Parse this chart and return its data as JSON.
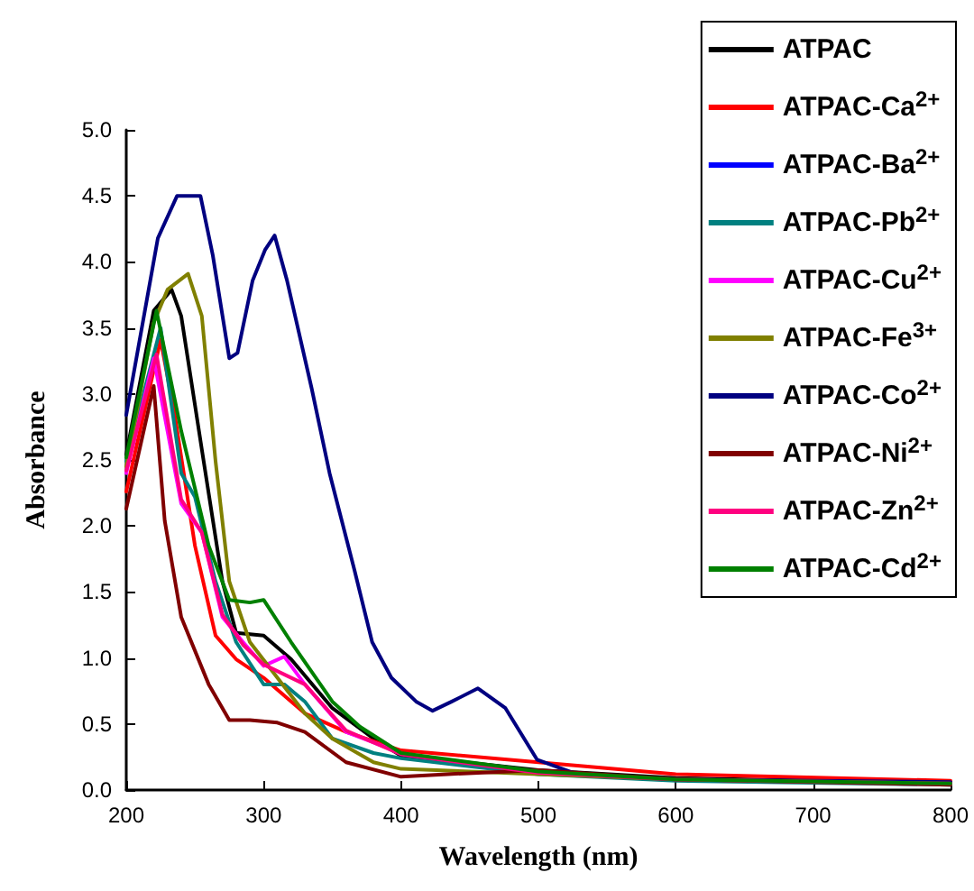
{
  "chart_data": {
    "type": "line",
    "xlabel": "Wavelength (nm)",
    "ylabel": "Absorbance",
    "xlim": [
      200,
      800
    ],
    "xticks": [
      200,
      300,
      400,
      500,
      600,
      700,
      800
    ],
    "ylim": [
      0,
      5
    ],
    "yticks": [
      {
        "value": 0,
        "label": "0.0"
      },
      {
        "value": 0.5,
        "label": "0.5"
      },
      {
        "value": 1,
        "label": "1.0"
      },
      {
        "value": 1.5,
        "label": "1.5"
      },
      {
        "value": 2,
        "label": "2.0"
      },
      {
        "value": 2.5,
        "label": "2.5"
      },
      {
        "value": 3,
        "label": "3.0"
      },
      {
        "value": 3.5,
        "label": "3.5"
      },
      {
        "value": 4,
        "label": "4.0"
      },
      {
        "value": 4.5,
        "label": "4.5"
      },
      {
        "value": 5,
        "label": "5.0"
      }
    ],
    "grid": false,
    "legend": "top right",
    "marker": "none",
    "line_style": "solid",
    "series": [
      {
        "name": "ATPAC",
        "color": "#000000",
        "x": [
          200,
          220,
          233,
          240,
          255,
          270,
          280,
          300,
          320,
          350,
          380,
          400,
          500,
          600,
          800
        ],
        "values": [
          2.54,
          3.63,
          3.79,
          3.59,
          2.58,
          1.58,
          1.19,
          1.17,
          0.99,
          0.62,
          0.39,
          0.26,
          0.15,
          0.09,
          0.05
        ]
      },
      {
        "name": "ATPAC-Ca$^{2+}$",
        "color": "#ff0000",
        "x": [
          200,
          225,
          235,
          250,
          265,
          280,
          300,
          330,
          360,
          400,
          500,
          600,
          800
        ],
        "values": [
          2.26,
          3.41,
          2.86,
          1.85,
          1.17,
          0.99,
          0.85,
          0.58,
          0.44,
          0.3,
          0.21,
          0.12,
          0.07
        ]
      },
      {
        "name": "ATPAC-Ba$^{2+}$",
        "color": "#0000ff"
      },
      {
        "name": "ATPAC-Pb$^{2+}$",
        "color": "#008080",
        "x": [
          200,
          225,
          240,
          250,
          265,
          280,
          300,
          315,
          330,
          350,
          380,
          400,
          500,
          600,
          800
        ],
        "values": [
          2.49,
          3.5,
          2.4,
          2.22,
          1.58,
          1.12,
          0.8,
          0.8,
          0.67,
          0.39,
          0.28,
          0.24,
          0.12,
          0.07,
          0.04
        ]
      },
      {
        "name": "ATPAC-Cu$^{2+}$",
        "color": "#ff00ff",
        "x": [
          200,
          220,
          240,
          255,
          270,
          285,
          300,
          315,
          330,
          360,
          400
        ],
        "values": [
          2.4,
          3.27,
          2.17,
          1.95,
          1.31,
          1.12,
          0.94,
          1.01,
          0.8,
          0.44,
          0.28
        ]
      },
      {
        "name": "ATPAC-Fe$^{3+}$",
        "color": "#808000",
        "x": [
          200,
          220,
          230,
          245,
          255,
          265,
          275,
          290,
          310,
          330,
          350,
          380,
          400,
          500,
          600,
          800
        ],
        "values": [
          2.45,
          3.54,
          3.79,
          3.91,
          3.59,
          2.49,
          1.58,
          1.12,
          0.85,
          0.58,
          0.39,
          0.21,
          0.16,
          0.12,
          0.08,
          0.05
        ]
      },
      {
        "name": "ATPAC-Co$^{2+}$",
        "color": "#000080",
        "x": [
          200,
          223,
          237,
          254,
          263,
          275,
          281,
          292,
          301,
          308,
          317,
          335,
          348,
          366,
          379,
          393,
          411,
          423,
          437,
          456,
          476,
          499,
          528,
          600,
          800
        ],
        "values": [
          2.84,
          4.18,
          4.5,
          4.5,
          4.05,
          3.27,
          3.31,
          3.86,
          4.09,
          4.2,
          3.86,
          3.04,
          2.4,
          1.67,
          1.12,
          0.85,
          0.67,
          0.6,
          0.67,
          0.77,
          0.62,
          0.23,
          0.12,
          0.08,
          0.06
        ]
      },
      {
        "name": "ATPAC-Ni$^{2+}$",
        "color": "#800000",
        "x": [
          200,
          220,
          228,
          240,
          260,
          275,
          290,
          310,
          330,
          360,
          400,
          434,
          500,
          600,
          800
        ],
        "values": [
          2.13,
          3.06,
          2.04,
          1.31,
          0.8,
          0.53,
          0.53,
          0.51,
          0.44,
          0.21,
          0.1,
          0.12,
          0.15,
          0.08,
          0.04
        ]
      },
      {
        "name": "ATPAC-Zn$^{2+}$",
        "color": "#ff0080",
        "x": [
          200,
          222,
          240,
          255,
          270,
          285,
          300,
          330,
          360,
          400,
          500,
          600,
          800
        ],
        "values": [
          2.42,
          3.3,
          2.2,
          1.95,
          1.33,
          1.1,
          0.95,
          0.8,
          0.45,
          0.27,
          0.13,
          0.08,
          0.05
        ]
      },
      {
        "name": "ATPAC-Cd$^{2+}$",
        "color": "#008000",
        "x": [
          200,
          222,
          240,
          260,
          275,
          290,
          300,
          320,
          350,
          370,
          400,
          500,
          600,
          800
        ],
        "values": [
          2.52,
          3.63,
          2.72,
          1.85,
          1.44,
          1.42,
          1.44,
          1.12,
          0.67,
          0.48,
          0.28,
          0.14,
          0.08,
          0.05
        ]
      }
    ]
  }
}
